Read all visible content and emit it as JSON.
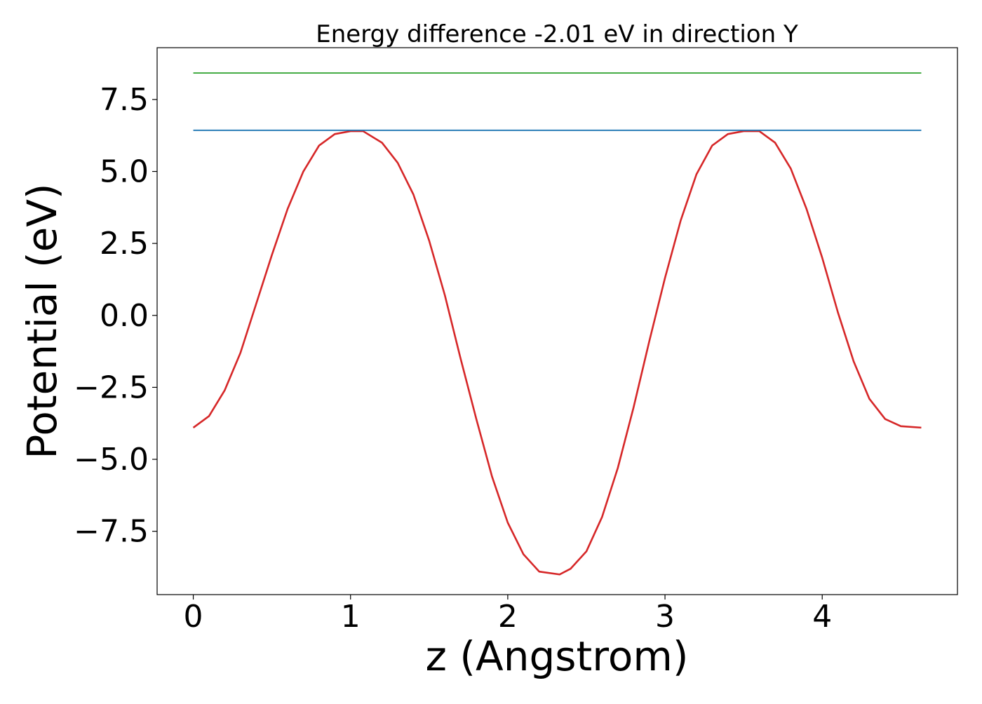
{
  "chart_data": {
    "type": "line",
    "title": "Energy difference -2.01 eV in direction Y",
    "xlabel": "z (Angstrom)",
    "ylabel": "Potential (eV)",
    "xlim": [
      -0.23,
      4.86
    ],
    "ylim": [
      -9.7,
      9.3
    ],
    "xticks": [
      0,
      1,
      2,
      3,
      4
    ],
    "xtick_labels": [
      "0",
      "1",
      "2",
      "3",
      "4"
    ],
    "yticks": [
      7.5,
      5.0,
      2.5,
      0.0,
      -2.5,
      -5.0,
      -7.5
    ],
    "ytick_labels": [
      "7.5",
      "5.0",
      "2.5",
      "0.0",
      "−2.5",
      "−5.0",
      "−7.5"
    ],
    "grid": false,
    "series": [
      {
        "color": "#d62728",
        "x": [
          0.0,
          0.1,
          0.2,
          0.3,
          0.4,
          0.5,
          0.6,
          0.7,
          0.8,
          0.9,
          1.0,
          1.08,
          1.2,
          1.3,
          1.4,
          1.5,
          1.6,
          1.7,
          1.8,
          1.9,
          2.0,
          2.1,
          2.2,
          2.33,
          2.4,
          2.5,
          2.6,
          2.7,
          2.8,
          2.9,
          3.0,
          3.1,
          3.2,
          3.3,
          3.4,
          3.5,
          3.6,
          3.7,
          3.8,
          3.9,
          4.0,
          4.1,
          4.2,
          4.3,
          4.4,
          4.5,
          4.63
        ],
        "y": [
          -3.9,
          -3.5,
          -2.6,
          -1.3,
          0.4,
          2.1,
          3.7,
          5.0,
          5.9,
          6.3,
          6.4,
          6.4,
          6.0,
          5.3,
          4.2,
          2.6,
          0.7,
          -1.5,
          -3.6,
          -5.6,
          -7.2,
          -8.3,
          -8.9,
          -9.0,
          -8.8,
          -8.2,
          -7.0,
          -5.3,
          -3.2,
          -0.9,
          1.3,
          3.3,
          4.9,
          5.9,
          6.3,
          6.4,
          6.4,
          6.0,
          5.1,
          3.7,
          2.0,
          0.1,
          -1.6,
          -2.9,
          -3.6,
          -3.85,
          -3.9
        ]
      },
      {
        "color": "#1f77b4",
        "x": [
          0.0,
          4.63
        ],
        "y": [
          6.43,
          6.43
        ]
      },
      {
        "color": "#2ca02c",
        "x": [
          0.0,
          4.63
        ],
        "y": [
          8.42,
          8.42
        ]
      }
    ]
  }
}
